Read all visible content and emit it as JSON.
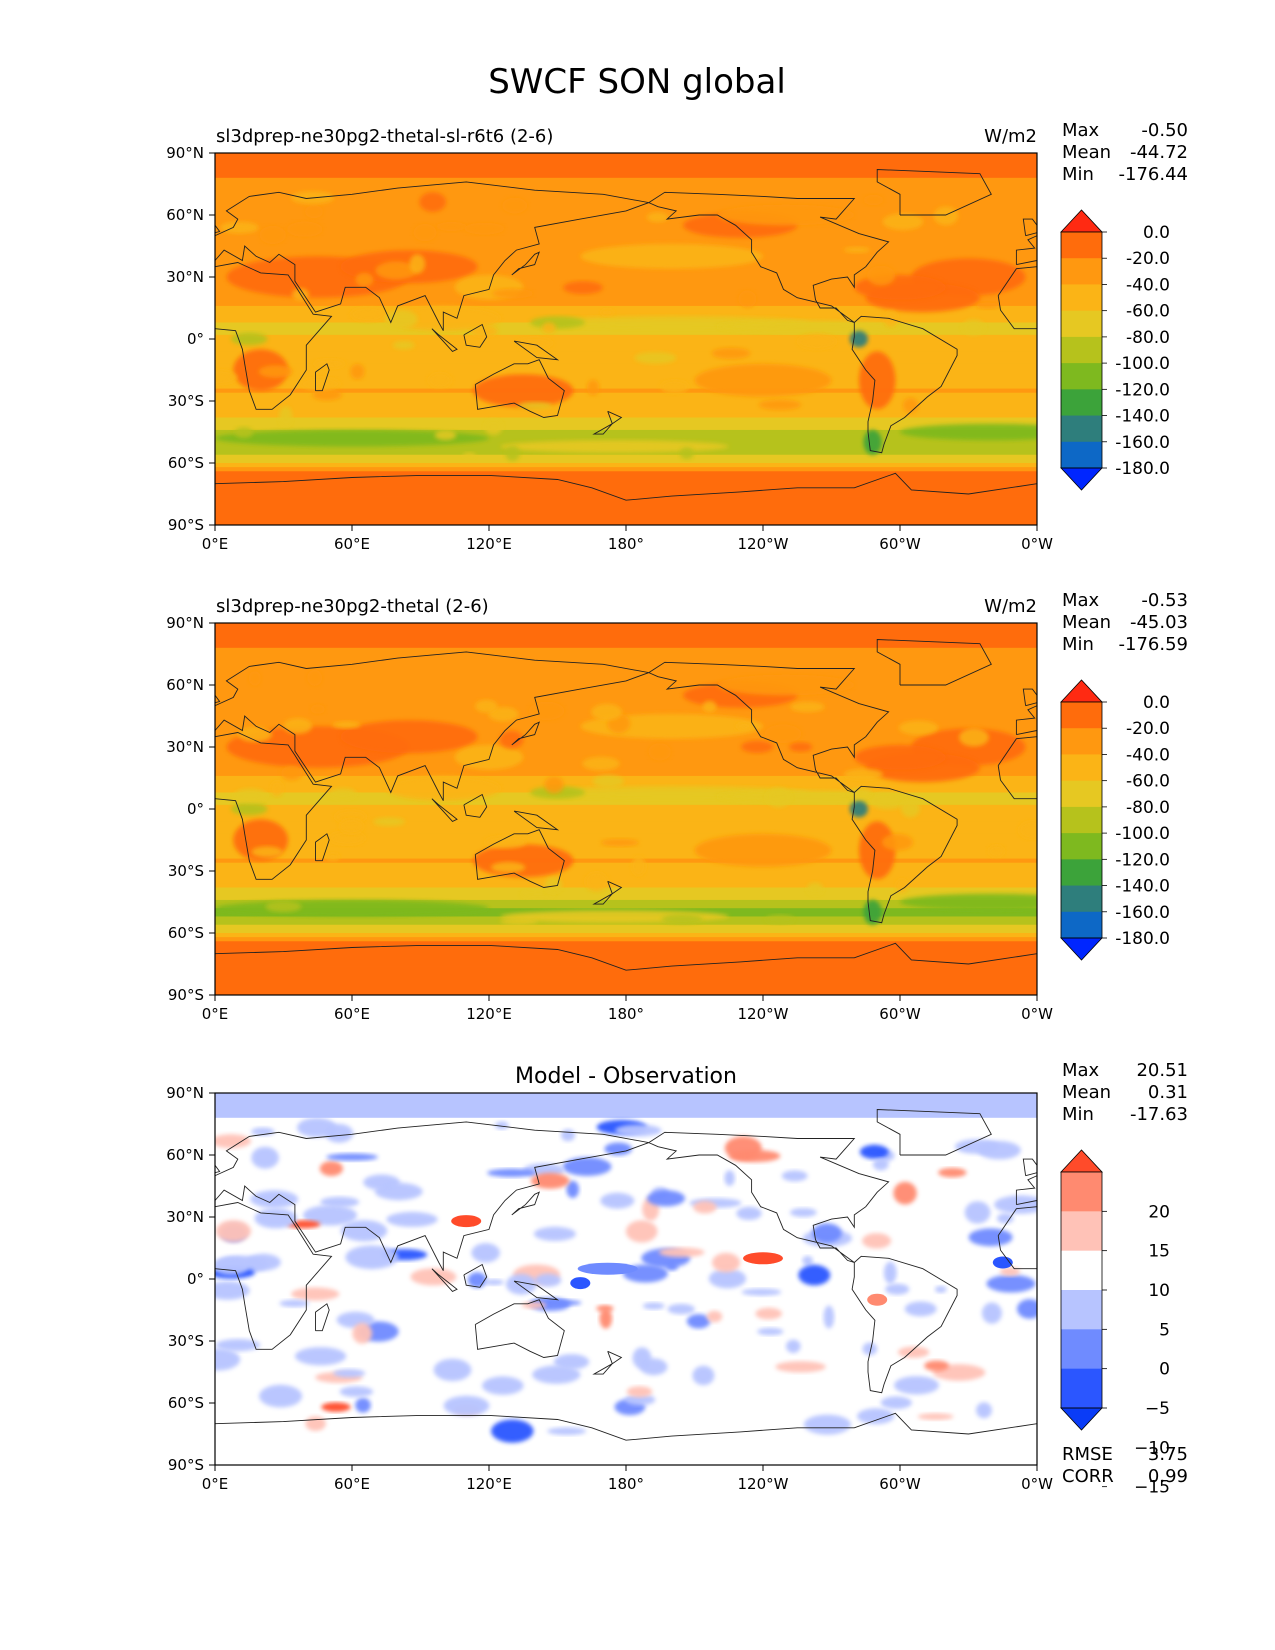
{
  "figure": {
    "title": "SWCF SON global"
  },
  "colors": {
    "abs_levels": [
      "#0026ff",
      "#0d68c6",
      "#2e7e7c",
      "#3ca33a",
      "#7eb91f",
      "#b6c21c",
      "#e6c822",
      "#fbb416",
      "#ff9810",
      "#ff6c0c",
      "#ff2a12"
    ],
    "diff_levels": [
      "#0a3cf7",
      "#2b56ff",
      "#6f8bff",
      "#b7c4ff",
      "#ffffff",
      "#ffc2b7",
      "#ff8a70",
      "#ff4b2a"
    ],
    "coast": "#222222"
  },
  "chart_data": [
    {
      "type": "heatmap",
      "title": "sl3dprep-ne30pg2-thetal-sl-r6t6 (2-6)",
      "units": "W/m2",
      "stats": {
        "max_label": "Max",
        "max": "-0.50",
        "mean_label": "Mean",
        "mean": "-44.72",
        "min_label": "Min",
        "min": "-176.44"
      },
      "xticks": [
        "0°E",
        "60°E",
        "120°E",
        "180°",
        "120°W",
        "60°W",
        "0°W"
      ],
      "yticks": [
        "90°N",
        "60°N",
        "30°N",
        "0°",
        "30°S",
        "60°S",
        "90°S"
      ],
      "xlim": [
        0,
        360
      ],
      "ylim": [
        -90,
        90
      ],
      "colorbar_levels": [
        "0.0",
        "-20.0",
        "-40.0",
        "-60.0",
        "-80.0",
        "-100.0",
        "-120.0",
        "-140.0",
        "-160.0",
        "-180.0"
      ],
      "colorbar_extend": "both",
      "zonal_mean_profile": [
        {
          "lat": 85,
          "value": -15
        },
        {
          "lat": 70,
          "value": -25
        },
        {
          "lat": 55,
          "value": -40
        },
        {
          "lat": 40,
          "value": -40
        },
        {
          "lat": 25,
          "value": -25
        },
        {
          "lat": 10,
          "value": -50
        },
        {
          "lat": 5,
          "value": -75
        },
        {
          "lat": 0,
          "value": -55
        },
        {
          "lat": -10,
          "value": -45
        },
        {
          "lat": -25,
          "value": -40
        },
        {
          "lat": -40,
          "value": -65
        },
        {
          "lat": -50,
          "value": -100
        },
        {
          "lat": -57,
          "value": -80
        },
        {
          "lat": -65,
          "value": -20
        },
        {
          "lat": -80,
          "value": -15
        }
      ]
    },
    {
      "type": "heatmap",
      "title": "sl3dprep-ne30pg2-thetal (2-6)",
      "units": "W/m2",
      "stats": {
        "max_label": "Max",
        "max": "-0.53",
        "mean_label": "Mean",
        "mean": "-45.03",
        "min_label": "Min",
        "min": "-176.59"
      },
      "xticks": [
        "0°E",
        "60°E",
        "120°E",
        "180°",
        "120°W",
        "60°W",
        "0°W"
      ],
      "yticks": [
        "90°N",
        "60°N",
        "30°N",
        "0°",
        "30°S",
        "60°S",
        "90°S"
      ],
      "xlim": [
        0,
        360
      ],
      "ylim": [
        -90,
        90
      ],
      "colorbar_levels": [
        "0.0",
        "-20.0",
        "-40.0",
        "-60.0",
        "-80.0",
        "-100.0",
        "-120.0",
        "-140.0",
        "-160.0",
        "-180.0"
      ],
      "colorbar_extend": "both",
      "zonal_mean_profile": [
        {
          "lat": 85,
          "value": -15
        },
        {
          "lat": 70,
          "value": -25
        },
        {
          "lat": 55,
          "value": -40
        },
        {
          "lat": 40,
          "value": -40
        },
        {
          "lat": 25,
          "value": -25
        },
        {
          "lat": 10,
          "value": -50
        },
        {
          "lat": 5,
          "value": -75
        },
        {
          "lat": 0,
          "value": -55
        },
        {
          "lat": -10,
          "value": -45
        },
        {
          "lat": -25,
          "value": -40
        },
        {
          "lat": -40,
          "value": -65
        },
        {
          "lat": -50,
          "value": -105
        },
        {
          "lat": -57,
          "value": -80
        },
        {
          "lat": -65,
          "value": -20
        },
        {
          "lat": -80,
          "value": -15
        }
      ]
    },
    {
      "type": "heatmap",
      "title": "Model - Observation",
      "units": "",
      "stats": {
        "max_label": "Max",
        "max": "20.51",
        "mean_label": "Mean",
        "mean": "0.31",
        "min_label": "Min",
        "min": "-17.63"
      },
      "extra_stats": {
        "rmse_label": "RMSE",
        "rmse": "3.75",
        "corr_label": "CORR",
        "corr": "0.99"
      },
      "xticks": [
        "0°E",
        "60°E",
        "120°E",
        "180°",
        "120°W",
        "60°W",
        "0°W"
      ],
      "yticks": [
        "90°N",
        "60°N",
        "30°N",
        "0°",
        "30°S",
        "60°S",
        "90°S"
      ],
      "xlim": [
        0,
        360
      ],
      "ylim": [
        -90,
        90
      ],
      "colorbar_levels": [
        "20",
        "15",
        "10",
        "5",
        "0",
        "−5",
        "−10",
        "−15"
      ],
      "colorbar_extend": "both"
    }
  ]
}
